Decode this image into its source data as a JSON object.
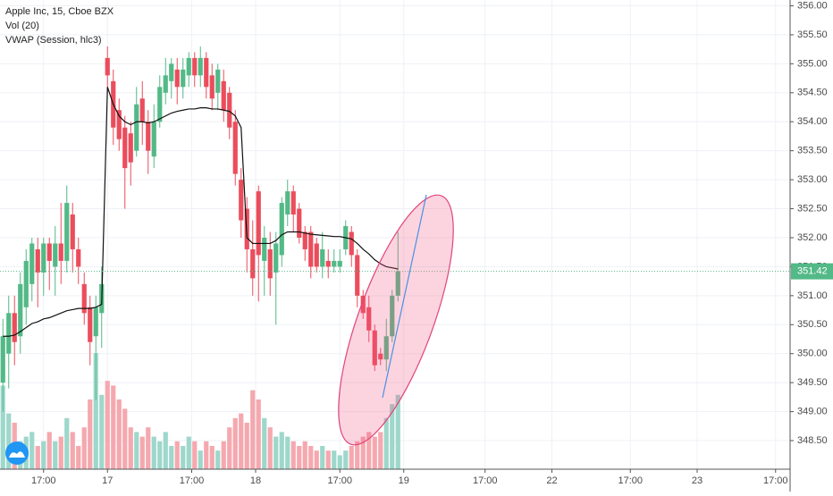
{
  "chart_data": {
    "type": "candlestick",
    "title": "Apple Inc, 15, Cboe BZX",
    "indicators": [
      "Vol (20)",
      "VWAP (Session, hlc3)"
    ],
    "up_color": "#53b987",
    "down_color": "#eb4d5c",
    "volume_up_color": "#9ed7cb",
    "volume_down_color": "#f5a8ae",
    "vwap_color": "#111111",
    "grid": true,
    "ylim": [
      348.3,
      356.1
    ],
    "yticks": [
      {
        "value": 356,
        "label": "356.00"
      },
      {
        "value": 355.5,
        "label": "355.50"
      },
      {
        "value": 355,
        "label": "355.00"
      },
      {
        "value": 354.5,
        "label": "354.50"
      },
      {
        "value": 354,
        "label": "354.00"
      },
      {
        "value": 353.5,
        "label": "353.50"
      },
      {
        "value": 353,
        "label": "353.00"
      },
      {
        "value": 352.5,
        "label": "352.50"
      },
      {
        "value": 352,
        "label": "352.00"
      },
      {
        "value": 351.5,
        "label": "351.50"
      },
      {
        "value": 351,
        "label": "351.00"
      },
      {
        "value": 350.5,
        "label": "350.50"
      },
      {
        "value": 350,
        "label": "350.00"
      },
      {
        "value": 349.5,
        "label": "349.50"
      },
      {
        "value": 349,
        "label": "349.00"
      },
      {
        "value": 348.5,
        "label": "348.50"
      }
    ],
    "xlim": [
      -0.5,
      135.5
    ],
    "xticks": [
      {
        "value": 7,
        "label": "17:00"
      },
      {
        "value": 18,
        "label": "17"
      },
      {
        "value": 32.5,
        "label": "17:00"
      },
      {
        "value": 43.5,
        "label": "18"
      },
      {
        "value": 58,
        "label": "17:00"
      },
      {
        "value": 69,
        "label": "19"
      },
      {
        "value": 83,
        "label": "17:00"
      },
      {
        "value": 94.5,
        "label": "22"
      },
      {
        "value": 108,
        "label": "17:00"
      },
      {
        "value": 119.5,
        "label": "23"
      },
      {
        "value": 133,
        "label": "17:00"
      }
    ],
    "last_price": {
      "value": 351.42,
      "label": "351.42"
    },
    "open": [
      349.5,
      350.0,
      350.7,
      350.3,
      350.8,
      351.2,
      351.8,
      351.4,
      351.9,
      351.5,
      351.9,
      351.6,
      352.4,
      351.8,
      351.2,
      350.8,
      350.3,
      350.7,
      355.1,
      354.7,
      354.2,
      353.9,
      353.8,
      353.5,
      354.4,
      354.0,
      353.4,
      354.0,
      354.5,
      354.7,
      354.9,
      354.6,
      354.8,
      355.1,
      354.8,
      355.1,
      354.8,
      354.5,
      354.7,
      354.5,
      354.0,
      353.0,
      352.5,
      351.8,
      352.8,
      351.6,
      351.8,
      351.4,
      351.7,
      352.4,
      352.8,
      352.5,
      352.1,
      352.1,
      351.9,
      351.5,
      351.6,
      351.5,
      351.5,
      351.8,
      352.1,
      351.7,
      351.0,
      350.8,
      350.4,
      350.0,
      349.9,
      350.3,
      351.0
    ],
    "high": [
      350.6,
      351.0,
      351.0,
      351.4,
      351.8,
      352.0,
      352.0,
      352.0,
      352.0,
      352.2,
      352.6,
      352.9,
      352.6,
      352.0,
      351.4,
      351.0,
      351.0,
      351.5,
      355.3,
      354.9,
      354.4,
      354.1,
      354.0,
      354.6,
      354.7,
      354.2,
      354.3,
      354.8,
      355.1,
      355.1,
      355.1,
      355.1,
      355.2,
      355.2,
      355.3,
      355.2,
      355.0,
      355.0,
      354.9,
      354.6,
      354.2,
      353.2,
      352.7,
      352.3,
      352.9,
      352.2,
      352.1,
      352.1,
      352.7,
      353.0,
      352.9,
      352.6,
      352.2,
      352.2,
      352.0,
      352.1,
      351.8,
      351.8,
      351.8,
      352.3,
      352.2,
      351.8,
      351.1,
      351.0,
      350.5,
      350.1,
      350.6,
      351.1,
      352.1
    ],
    "low": [
      349.0,
      349.4,
      349.8,
      350.0,
      350.5,
      350.9,
      350.8,
      351.0,
      351.1,
      351.0,
      351.2,
      351.4,
      351.4,
      351.2,
      350.5,
      349.8,
      349.2,
      350.1,
      354.5,
      353.6,
      353.5,
      352.5,
      352.9,
      353.4,
      353.6,
      353.1,
      353.2,
      353.9,
      354.3,
      354.4,
      354.3,
      354.4,
      354.6,
      354.6,
      354.6,
      354.4,
      354.2,
      354.2,
      354.0,
      353.7,
      352.9,
      352.0,
      351.4,
      351.0,
      350.9,
      351.0,
      351.0,
      350.5,
      351.5,
      352.2,
      352.1,
      351.9,
      351.6,
      351.3,
      351.4,
      351.3,
      351.3,
      351.4,
      351.4,
      351.7,
      351.5,
      350.8,
      350.6,
      350.2,
      349.7,
      349.8,
      349.7,
      350.2,
      350.9
    ],
    "close": [
      350.3,
      350.7,
      350.2,
      351.2,
      351.6,
      351.9,
      351.4,
      351.9,
      351.6,
      351.9,
      351.6,
      352.6,
      351.8,
      351.5,
      350.7,
      350.2,
      350.8,
      351.2,
      354.8,
      353.9,
      353.7,
      353.2,
      353.3,
      354.3,
      354.0,
      353.5,
      354.0,
      354.6,
      354.8,
      355.0,
      354.6,
      354.9,
      355.1,
      354.8,
      355.1,
      354.6,
      354.4,
      354.9,
      354.2,
      353.9,
      353.1,
      352.3,
      351.8,
      351.3,
      351.7,
      352.0,
      351.3,
      351.9,
      352.6,
      352.8,
      352.4,
      352.0,
      351.8,
      351.5,
      351.5,
      351.8,
      351.5,
      351.6,
      351.6,
      352.2,
      351.7,
      351.0,
      350.7,
      350.4,
      349.8,
      349.9,
      350.3,
      351.0,
      351.42
    ],
    "volume": [
      90,
      60,
      50,
      30,
      35,
      40,
      25,
      30,
      40,
      30,
      35,
      55,
      40,
      25,
      45,
      75,
      125,
      80,
      95,
      90,
      75,
      65,
      45,
      40,
      35,
      45,
      35,
      30,
      40,
      25,
      30,
      25,
      35,
      30,
      20,
      30,
      25,
      20,
      30,
      45,
      55,
      60,
      50,
      85,
      75,
      55,
      45,
      35,
      40,
      35,
      30,
      25,
      30,
      25,
      20,
      25,
      20,
      20,
      15,
      20,
      25,
      30,
      35,
      40,
      35,
      40,
      55,
      70,
      80
    ],
    "vwap": [
      350.3,
      350.3,
      350.32,
      350.38,
      350.45,
      350.52,
      350.55,
      350.6,
      350.62,
      350.66,
      350.7,
      350.74,
      350.76,
      350.78,
      350.78,
      350.78,
      350.8,
      350.85,
      354.6,
      354.3,
      354.1,
      354.0,
      353.95,
      354.0,
      354.0,
      353.98,
      354.0,
      354.05,
      354.1,
      354.15,
      354.18,
      354.2,
      354.22,
      354.22,
      354.24,
      354.24,
      354.22,
      354.22,
      354.2,
      354.18,
      354.1,
      353.9,
      352.0,
      351.9,
      351.9,
      351.9,
      351.9,
      351.95,
      352.05,
      352.1,
      352.1,
      352.1,
      352.08,
      352.06,
      352.05,
      352.04,
      352.03,
      352.02,
      352.02,
      352.0,
      351.98,
      351.9,
      351.8,
      351.72,
      351.62,
      351.55,
      351.5,
      351.48,
      351.46
    ]
  }
}
